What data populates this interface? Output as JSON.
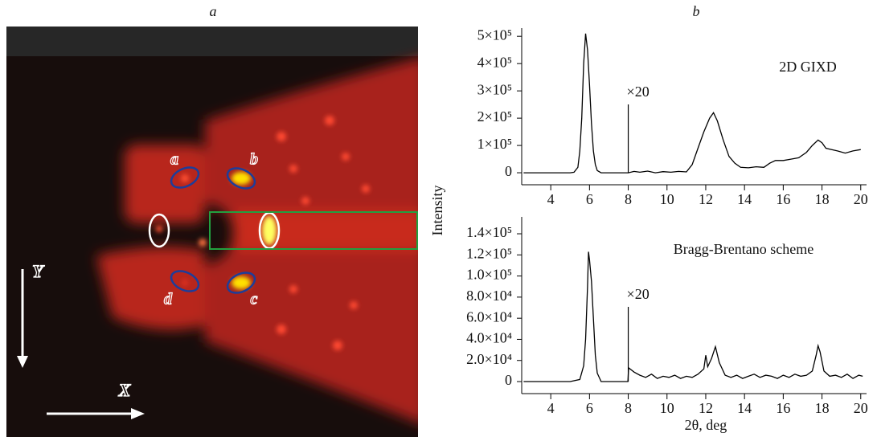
{
  "panel_labels": [
    "a",
    "b"
  ],
  "image_panel": {
    "spots": [
      "a",
      "b",
      "c",
      "d"
    ],
    "axes": [
      "Y",
      "X"
    ]
  },
  "chart_data": [
    {
      "type": "line",
      "ylabel": "Intensity",
      "annotations": [
        "2D GIXD"
      ],
      "markers": [
        {
          "x": 8,
          "label": "×20"
        }
      ],
      "color": "#000000",
      "xlim": [
        2.5,
        20.3
      ],
      "ylim": [
        -44000,
        530000
      ],
      "xticks": [
        4,
        6,
        8,
        10,
        12,
        14,
        16,
        18,
        20
      ],
      "yticks": [
        0,
        {
          "value": 100000,
          "label": "1×10⁵"
        },
        {
          "value": 200000,
          "label": "2×10⁵"
        },
        {
          "value": 300000,
          "label": "3×10⁵"
        },
        {
          "value": 400000,
          "label": "4×10⁵"
        },
        {
          "value": 500000,
          "label": "5×10⁵"
        }
      ],
      "x": [
        2.6,
        3,
        3.5,
        4,
        4.5,
        5,
        5.2,
        5.4,
        5.5,
        5.6,
        5.7,
        5.8,
        5.9,
        6.0,
        6.1,
        6.2,
        6.3,
        6.4,
        6.6,
        7,
        7.5,
        8,
        8.3,
        8.6,
        9,
        9.4,
        9.8,
        10.2,
        10.6,
        11,
        11.3,
        11.6,
        11.9,
        12.2,
        12.4,
        12.6,
        12.9,
        13.2,
        13.5,
        13.8,
        14.2,
        14.6,
        15,
        15.3,
        15.6,
        16,
        16.4,
        16.8,
        17.2,
        17.5,
        17.8,
        18,
        18.2,
        18.5,
        18.8,
        19.2,
        19.6,
        20
      ],
      "values": [
        0,
        0,
        0,
        0,
        0,
        0,
        2000,
        20000,
        80000,
        200000,
        400000,
        510000,
        450000,
        320000,
        180000,
        80000,
        30000,
        8000,
        0,
        0,
        0,
        0,
        5000,
        2000,
        6000,
        0,
        4000,
        2000,
        5000,
        3000,
        30000,
        90000,
        150000,
        200000,
        220000,
        190000,
        120000,
        60000,
        35000,
        20000,
        18000,
        22000,
        20000,
        35000,
        45000,
        45000,
        50000,
        55000,
        75000,
        100000,
        120000,
        110000,
        90000,
        85000,
        80000,
        72000,
        80000,
        85000
      ]
    },
    {
      "type": "line",
      "xlabel": "2θ, deg",
      "annotations": [
        "Bragg-Brentano scheme"
      ],
      "markers": [
        {
          "x": 8,
          "label": "×20"
        }
      ],
      "color": "#000000",
      "xlim": [
        2.5,
        20.3
      ],
      "ylim": [
        -11400,
        156000
      ],
      "xticks": [
        4,
        6,
        8,
        10,
        12,
        14,
        16,
        18,
        20
      ],
      "yticks": [
        0,
        {
          "value": 20000,
          "label": "2.0×10⁴"
        },
        {
          "value": 40000,
          "label": "4.0×10⁴"
        },
        {
          "value": 60000,
          "label": "6.0×10⁴"
        },
        {
          "value": 80000,
          "label": "8.0×10⁴"
        },
        {
          "value": 100000,
          "label": "1.0×10⁵"
        },
        {
          "value": 120000,
          "label": "1.2×10⁵"
        },
        {
          "value": 140000,
          "label": "1.4×10⁵"
        }
      ],
      "x": [
        2.6,
        3,
        3.5,
        4,
        4.5,
        5,
        5.5,
        5.7,
        5.8,
        5.9,
        5.95,
        6.0,
        6.1,
        6.2,
        6.3,
        6.4,
        6.6,
        7,
        7.5,
        7.98,
        8.02,
        8.3,
        8.6,
        8.9,
        9.2,
        9.5,
        9.8,
        10.1,
        10.4,
        10.7,
        11,
        11.3,
        11.6,
        11.9,
        12.0,
        12.1,
        12.3,
        12.5,
        12.7,
        13,
        13.3,
        13.6,
        13.9,
        14.2,
        14.5,
        14.8,
        15.1,
        15.4,
        15.7,
        16,
        16.3,
        16.6,
        16.9,
        17.2,
        17.5,
        17.7,
        17.8,
        17.9,
        18.1,
        18.4,
        18.7,
        19,
        19.3,
        19.6,
        19.9,
        20.1
      ],
      "values": [
        0,
        0,
        0,
        0,
        0,
        0,
        2000,
        15000,
        40000,
        90000,
        123000,
        115000,
        95000,
        60000,
        25000,
        8000,
        0,
        0,
        0,
        0,
        13000,
        9000,
        6000,
        4000,
        7000,
        3000,
        5000,
        4000,
        6000,
        3000,
        5000,
        4000,
        7000,
        12000,
        25000,
        14000,
        22000,
        33000,
        18000,
        6000,
        4000,
        6000,
        3000,
        5000,
        7000,
        4000,
        6000,
        5000,
        3000,
        6000,
        4000,
        7000,
        5000,
        6000,
        10000,
        25000,
        34000,
        28000,
        10000,
        5000,
        6000,
        4000,
        7000,
        3000,
        6000,
        5000
      ]
    }
  ]
}
